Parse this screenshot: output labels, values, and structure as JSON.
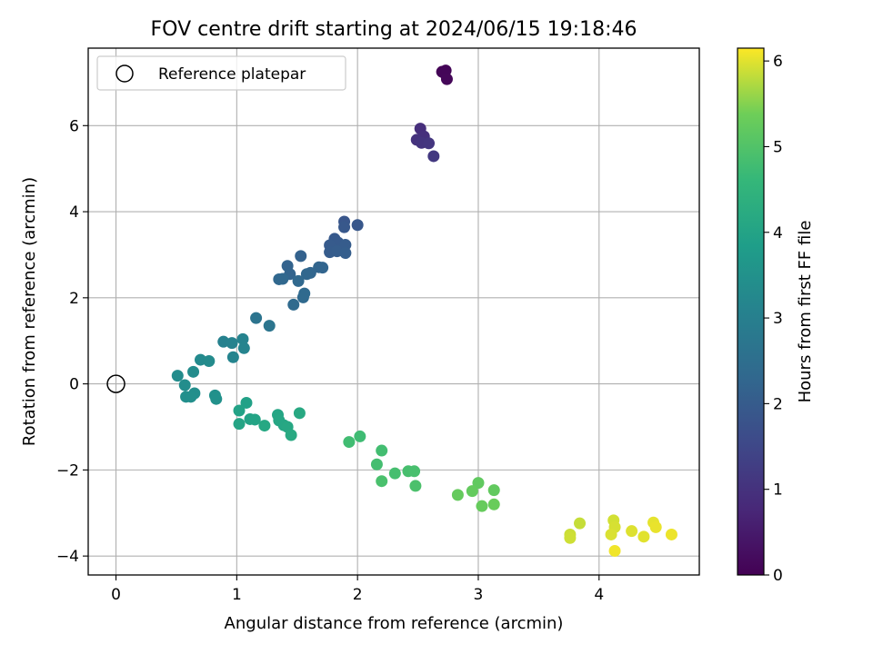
{
  "chart_data": {
    "type": "scatter",
    "title": "FOV centre drift starting at 2024/06/15 19:18:46",
    "xlabel": "Angular distance from reference (arcmin)",
    "ylabel": "Rotation from reference (arcmin)",
    "xlim": [
      -0.23,
      4.83
    ],
    "ylim": [
      -4.44,
      7.8
    ],
    "xticks": [
      0,
      1,
      2,
      3,
      4
    ],
    "yticks": [
      -4,
      -2,
      0,
      2,
      4,
      6
    ],
    "grid": true,
    "legend": {
      "location": "upper-left",
      "entries": [
        "Reference platepar"
      ]
    },
    "reference_point": {
      "x": 0,
      "y": 0,
      "label": "Reference platepar"
    },
    "colorbar": {
      "label": "Hours from first FF file",
      "range": [
        0,
        6.15
      ],
      "ticks": [
        0,
        1,
        2,
        3,
        4,
        5,
        6
      ],
      "colormap": "viridis"
    },
    "points": [
      {
        "x": 2.7,
        "y": 7.25,
        "h": 0.05
      },
      {
        "x": 2.73,
        "y": 7.28,
        "h": 0.07
      },
      {
        "x": 2.72,
        "y": 7.22,
        "h": 0.09
      },
      {
        "x": 2.74,
        "y": 7.08,
        "h": 0.11
      },
      {
        "x": 2.52,
        "y": 5.93,
        "h": 0.9
      },
      {
        "x": 2.55,
        "y": 5.75,
        "h": 0.95
      },
      {
        "x": 2.49,
        "y": 5.67,
        "h": 1.0
      },
      {
        "x": 2.53,
        "y": 5.6,
        "h": 1.05
      },
      {
        "x": 2.59,
        "y": 5.59,
        "h": 1.1
      },
      {
        "x": 2.63,
        "y": 5.29,
        "h": 1.15
      },
      {
        "x": 1.89,
        "y": 3.77,
        "h": 1.85
      },
      {
        "x": 2.0,
        "y": 3.69,
        "h": 1.88
      },
      {
        "x": 1.89,
        "y": 3.64,
        "h": 1.9
      },
      {
        "x": 1.81,
        "y": 3.37,
        "h": 1.93
      },
      {
        "x": 1.84,
        "y": 3.28,
        "h": 1.96
      },
      {
        "x": 1.77,
        "y": 3.22,
        "h": 1.98
      },
      {
        "x": 1.9,
        "y": 3.23,
        "h": 2.0
      },
      {
        "x": 1.77,
        "y": 3.06,
        "h": 2.02
      },
      {
        "x": 1.83,
        "y": 3.08,
        "h": 2.04
      },
      {
        "x": 1.9,
        "y": 3.04,
        "h": 2.06
      },
      {
        "x": 1.53,
        "y": 2.97,
        "h": 2.15
      },
      {
        "x": 1.42,
        "y": 2.74,
        "h": 2.18
      },
      {
        "x": 1.44,
        "y": 2.55,
        "h": 2.2
      },
      {
        "x": 1.68,
        "y": 2.71,
        "h": 2.22
      },
      {
        "x": 1.71,
        "y": 2.7,
        "h": 2.24
      },
      {
        "x": 1.61,
        "y": 2.58,
        "h": 2.26
      },
      {
        "x": 1.58,
        "y": 2.55,
        "h": 2.28
      },
      {
        "x": 1.35,
        "y": 2.43,
        "h": 2.3
      },
      {
        "x": 1.38,
        "y": 2.44,
        "h": 2.32
      },
      {
        "x": 1.51,
        "y": 2.39,
        "h": 2.34
      },
      {
        "x": 1.56,
        "y": 2.1,
        "h": 2.36
      },
      {
        "x": 1.55,
        "y": 2.01,
        "h": 2.38
      },
      {
        "x": 1.47,
        "y": 1.84,
        "h": 2.4
      },
      {
        "x": 1.16,
        "y": 1.53,
        "h": 2.65
      },
      {
        "x": 1.27,
        "y": 1.35,
        "h": 2.68
      },
      {
        "x": 0.89,
        "y": 0.98,
        "h": 3.05
      },
      {
        "x": 0.96,
        "y": 0.95,
        "h": 3.08
      },
      {
        "x": 1.05,
        "y": 1.04,
        "h": 3.1
      },
      {
        "x": 1.06,
        "y": 0.83,
        "h": 3.12
      },
      {
        "x": 0.97,
        "y": 0.62,
        "h": 3.14
      },
      {
        "x": 0.7,
        "y": 0.56,
        "h": 3.3
      },
      {
        "x": 0.77,
        "y": 0.53,
        "h": 3.32
      },
      {
        "x": 0.64,
        "y": 0.28,
        "h": 3.34
      },
      {
        "x": 0.51,
        "y": 0.19,
        "h": 3.36
      },
      {
        "x": 0.57,
        "y": -0.03,
        "h": 3.38
      },
      {
        "x": 0.65,
        "y": -0.22,
        "h": 3.4
      },
      {
        "x": 0.58,
        "y": -0.3,
        "h": 3.42
      },
      {
        "x": 0.62,
        "y": -0.3,
        "h": 3.44
      },
      {
        "x": 0.82,
        "y": -0.27,
        "h": 3.46
      },
      {
        "x": 0.83,
        "y": -0.35,
        "h": 3.48
      },
      {
        "x": 1.08,
        "y": -0.44,
        "h": 3.95
      },
      {
        "x": 1.02,
        "y": -0.62,
        "h": 3.98
      },
      {
        "x": 1.11,
        "y": -0.82,
        "h": 4.0
      },
      {
        "x": 1.15,
        "y": -0.83,
        "h": 4.02
      },
      {
        "x": 1.02,
        "y": -0.93,
        "h": 4.04
      },
      {
        "x": 1.34,
        "y": -0.72,
        "h": 4.06
      },
      {
        "x": 1.35,
        "y": -0.85,
        "h": 4.08
      },
      {
        "x": 1.39,
        "y": -0.96,
        "h": 4.1
      },
      {
        "x": 1.42,
        "y": -1.0,
        "h": 4.12
      },
      {
        "x": 1.23,
        "y": -0.97,
        "h": 4.14
      },
      {
        "x": 1.52,
        "y": -0.68,
        "h": 4.16
      },
      {
        "x": 1.45,
        "y": -1.19,
        "h": 4.18
      },
      {
        "x": 2.02,
        "y": -1.22,
        "h": 4.75
      },
      {
        "x": 1.93,
        "y": -1.35,
        "h": 4.78
      },
      {
        "x": 2.2,
        "y": -1.55,
        "h": 4.8
      },
      {
        "x": 2.16,
        "y": -1.87,
        "h": 4.82
      },
      {
        "x": 2.31,
        "y": -2.08,
        "h": 4.84
      },
      {
        "x": 2.42,
        "y": -2.03,
        "h": 4.86
      },
      {
        "x": 2.47,
        "y": -2.03,
        "h": 4.88
      },
      {
        "x": 2.2,
        "y": -2.26,
        "h": 4.9
      },
      {
        "x": 2.48,
        "y": -2.37,
        "h": 4.92
      },
      {
        "x": 3.0,
        "y": -2.3,
        "h": 5.2
      },
      {
        "x": 3.13,
        "y": -2.47,
        "h": 5.22
      },
      {
        "x": 2.95,
        "y": -2.49,
        "h": 5.24
      },
      {
        "x": 2.83,
        "y": -2.58,
        "h": 5.26
      },
      {
        "x": 3.03,
        "y": -2.84,
        "h": 5.28
      },
      {
        "x": 3.13,
        "y": -2.8,
        "h": 5.3
      },
      {
        "x": 3.84,
        "y": -3.24,
        "h": 5.85
      },
      {
        "x": 3.76,
        "y": -3.5,
        "h": 5.88
      },
      {
        "x": 3.76,
        "y": -3.58,
        "h": 5.9
      },
      {
        "x": 4.12,
        "y": -3.17,
        "h": 5.92
      },
      {
        "x": 4.13,
        "y": -3.33,
        "h": 5.94
      },
      {
        "x": 4.1,
        "y": -3.5,
        "h": 5.96
      },
      {
        "x": 4.27,
        "y": -3.42,
        "h": 5.98
      },
      {
        "x": 4.37,
        "y": -3.55,
        "h": 6.0
      },
      {
        "x": 4.45,
        "y": -3.22,
        "h": 6.02
      },
      {
        "x": 4.47,
        "y": -3.33,
        "h": 6.04
      },
      {
        "x": 4.6,
        "y": -3.5,
        "h": 6.06
      },
      {
        "x": 4.13,
        "y": -3.88,
        "h": 6.08
      }
    ]
  }
}
